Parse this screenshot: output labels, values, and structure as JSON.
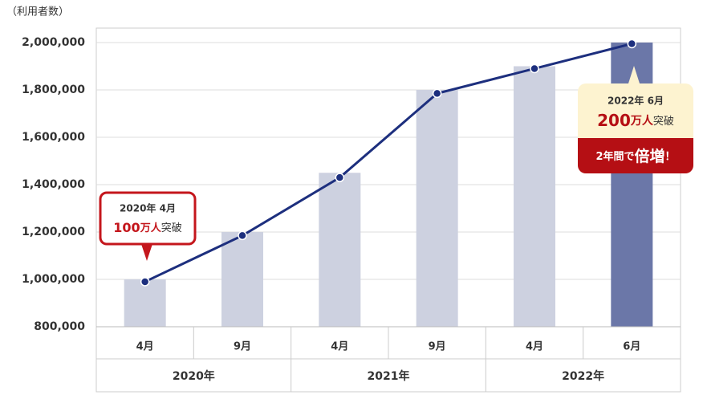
{
  "chart_data": {
    "type": "bar-line",
    "y_label": "（利用者数）",
    "categories": [
      "4月",
      "9月",
      "4月",
      "9月",
      "4月",
      "6月"
    ],
    "groups": [
      {
        "label": "2020年",
        "span": 2
      },
      {
        "label": "2021年",
        "span": 2
      },
      {
        "label": "2022年",
        "span": 2
      }
    ],
    "series": [
      {
        "type": "bar",
        "colors": [
          "#cdd1e0",
          "#cdd1e0",
          "#cdd1e0",
          "#cdd1e0",
          "#cdd1e0",
          "#6b77a8"
        ],
        "values": [
          1000000,
          1200000,
          1450000,
          1800000,
          1900000,
          2000000
        ]
      },
      {
        "type": "line",
        "color": "#1d2f7e",
        "values": [
          990000,
          1185000,
          1430000,
          1785000,
          1890000,
          1995000
        ]
      }
    ],
    "ylim": [
      800000,
      2000000
    ],
    "yticks": [
      {
        "value": 800000,
        "label": "800,000"
      },
      {
        "value": 1000000,
        "label": "1,000,000"
      },
      {
        "value": 1200000,
        "label": "1,200,000"
      },
      {
        "value": 1400000,
        "label": "1,400,000"
      },
      {
        "value": 1600000,
        "label": "1,600,000"
      },
      {
        "value": 1800000,
        "label": "1,800,000"
      },
      {
        "value": 2000000,
        "label": "2,000,000"
      }
    ],
    "grid": true,
    "annotations": [
      {
        "date": "2020年 4月",
        "number": "100",
        "unit": "万人",
        "text": "突破"
      },
      {
        "date": "2022年 6月",
        "number": "200",
        "unit": "万人",
        "text": "突破",
        "note": "2年間で",
        "emphasis": "倍増",
        "mark": "！"
      }
    ]
  }
}
